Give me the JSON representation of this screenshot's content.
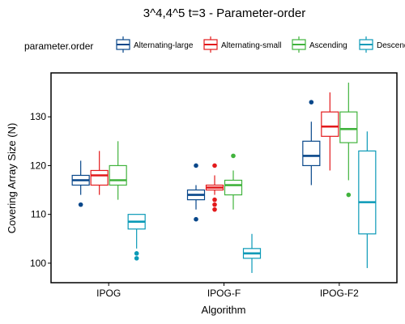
{
  "chart_data": {
    "type": "boxplot",
    "title": "3^4,4^5 t=3 - Parameter-order",
    "xlabel": "Algorithm",
    "ylabel": "Covering Array Size (N)",
    "ylim": [
      96,
      139
    ],
    "yticks": [
      100,
      110,
      120,
      130
    ],
    "grid": false,
    "legend": {
      "title": "parameter.order",
      "position": "top"
    },
    "categories": [
      "IPOG",
      "IPOG-F",
      "IPOG-F2"
    ],
    "series": [
      {
        "name": "Alternating-large",
        "color": "#08478a",
        "boxes": [
          {
            "category": "IPOG",
            "whisker_low": 114,
            "q1": 116,
            "median": 117,
            "q3": 118,
            "whisker_high": 121,
            "outliers": [
              112
            ]
          },
          {
            "category": "IPOG-F",
            "whisker_low": 111,
            "q1": 113,
            "median": 114,
            "q3": 115,
            "whisker_high": 116,
            "outliers": [
              109,
              120
            ]
          },
          {
            "category": "IPOG-F2",
            "whisker_low": 116,
            "q1": 120,
            "median": 122,
            "q3": 125,
            "whisker_high": 129,
            "outliers": [
              133
            ]
          }
        ]
      },
      {
        "name": "Alternating-small",
        "color": "#e31a1c",
        "boxes": [
          {
            "category": "IPOG",
            "whisker_low": 114,
            "q1": 116,
            "median": 118,
            "q3": 119,
            "whisker_high": 123,
            "outliers": []
          },
          {
            "category": "IPOG-F",
            "whisker_low": 114,
            "q1": 115,
            "median": 115.5,
            "q3": 116,
            "whisker_high": 118,
            "outliers": [
              111,
              112,
              113,
              120
            ]
          },
          {
            "category": "IPOG-F2",
            "whisker_low": 119,
            "q1": 126,
            "median": 128,
            "q3": 131,
            "whisker_high": 135,
            "outliers": []
          }
        ]
      },
      {
        "name": "Ascending",
        "color": "#41b33d",
        "boxes": [
          {
            "category": "IPOG",
            "whisker_low": 113,
            "q1": 116,
            "median": 117,
            "q3": 120,
            "whisker_high": 125,
            "outliers": []
          },
          {
            "category": "IPOG-F",
            "whisker_low": 111,
            "q1": 114,
            "median": 116,
            "q3": 117,
            "whisker_high": 119,
            "outliers": [
              122
            ]
          },
          {
            "category": "IPOG-F2",
            "whisker_low": 117,
            "q1": 124.7,
            "median": 127.5,
            "q3": 131,
            "whisker_high": 137,
            "outliers": [
              114
            ]
          }
        ]
      },
      {
        "name": "Descending",
        "color": "#0b9ab7",
        "boxes": [
          {
            "category": "IPOG",
            "whisker_low": 103,
            "q1": 107,
            "median": 108.5,
            "q3": 110,
            "whisker_high": 110,
            "outliers": [
              101,
              102
            ]
          },
          {
            "category": "IPOG-F",
            "whisker_low": 98,
            "q1": 101,
            "median": 102,
            "q3": 103,
            "whisker_high": 106,
            "outliers": []
          },
          {
            "category": "IPOG-F2",
            "whisker_low": 99,
            "q1": 106,
            "median": 112.5,
            "q3": 123,
            "whisker_high": 127,
            "outliers": []
          }
        ]
      }
    ]
  }
}
